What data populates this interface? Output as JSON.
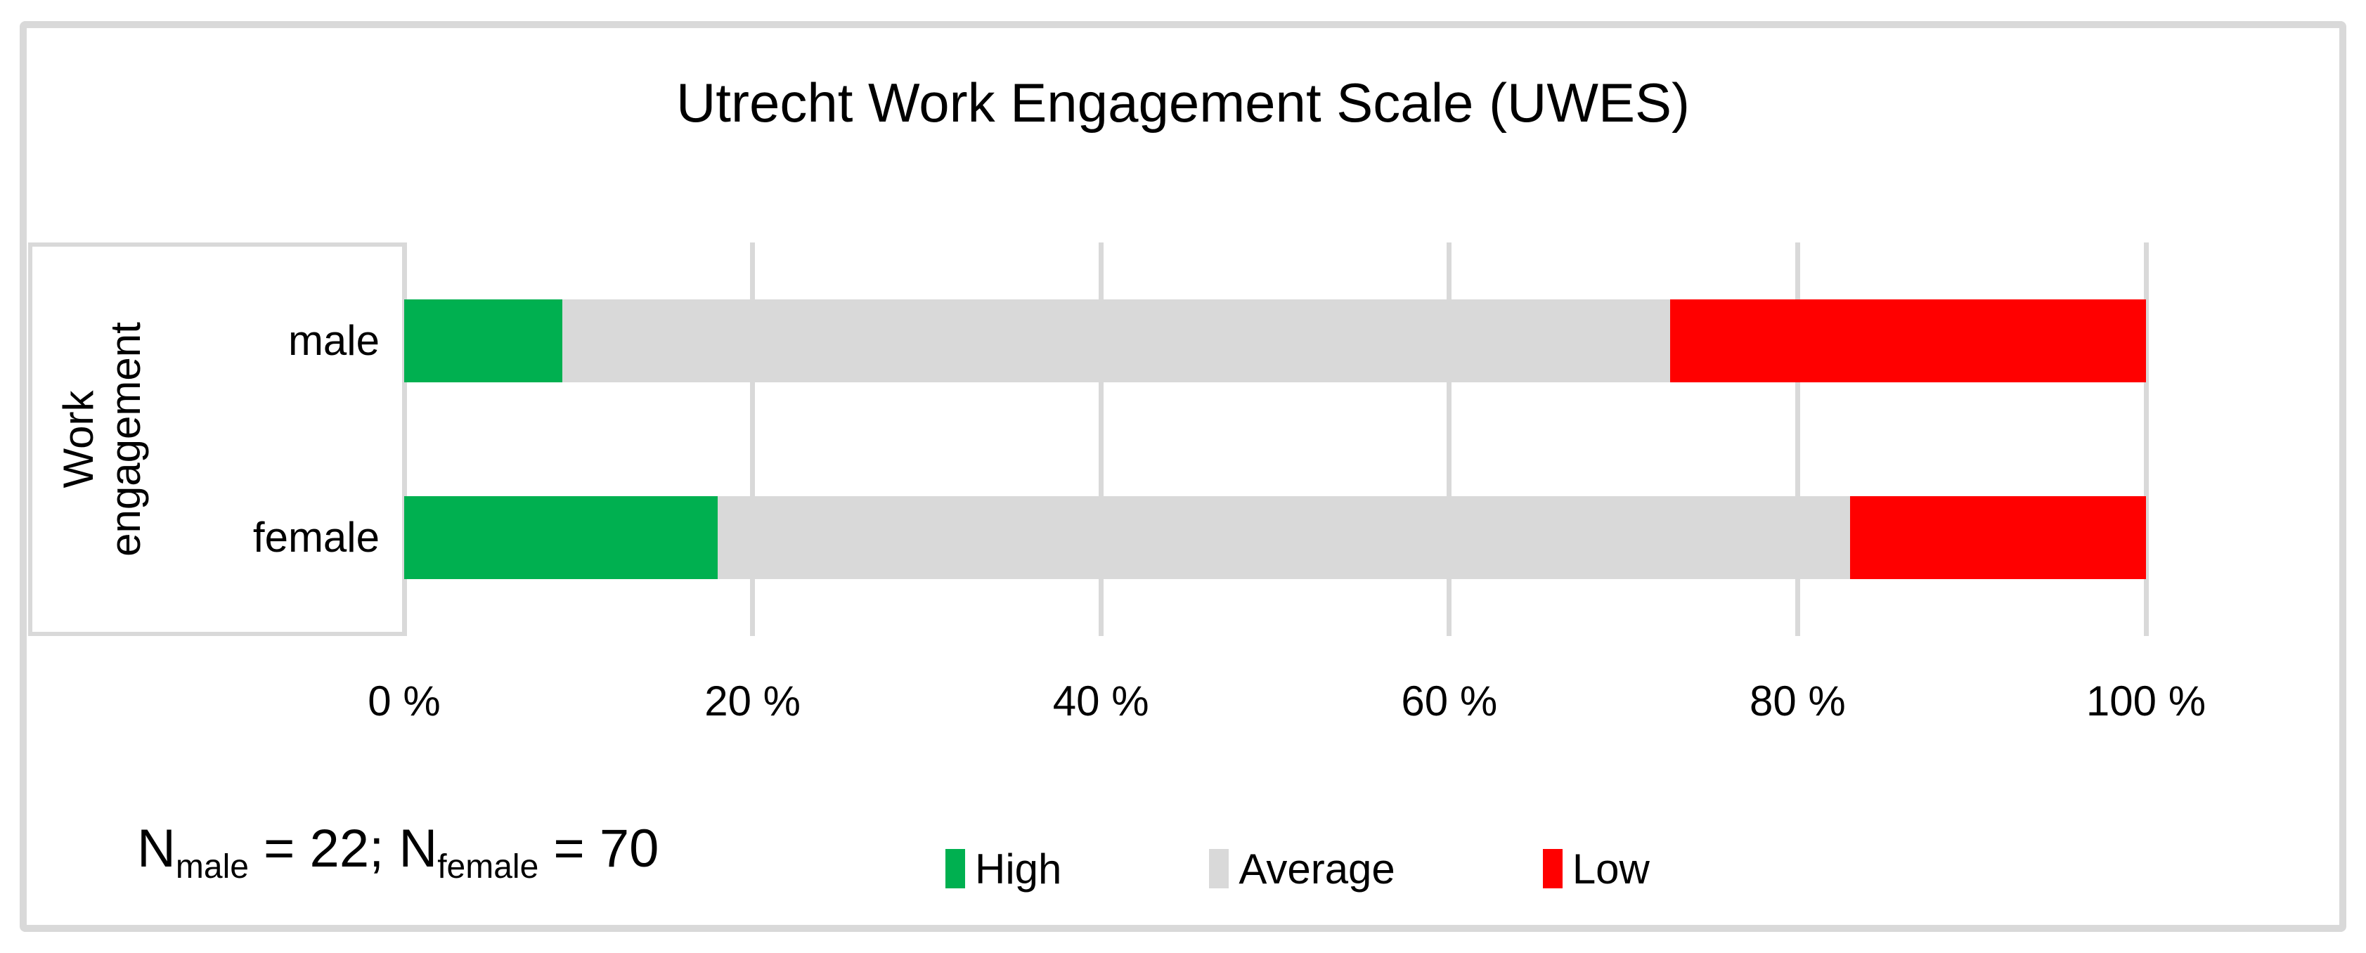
{
  "title": "Utrecht Work Engagement Scale (UWES)",
  "y_axis_label": {
    "line1": "Work",
    "line2": "engagement"
  },
  "annotation": {
    "symbol1": "N",
    "sub1": "male",
    "value1": " = 22; ",
    "symbol2": "N",
    "sub2": "female",
    "value2": " = 70"
  },
  "colors": {
    "high": "#00B050",
    "average": "#D9D9D9",
    "low": "#FF0000",
    "gridline": "#D9D9D9",
    "frame": "#D9D9D9",
    "text": "#000000"
  },
  "chart_data": {
    "type": "bar",
    "orientation": "horizontal",
    "stacked": true,
    "title": "Utrecht Work Engagement Scale (UWES)",
    "ylabel": "Work engagement",
    "categories": [
      "male",
      "female"
    ],
    "series": [
      {
        "name": "High",
        "color": "#00B050",
        "values": [
          9.1,
          18.0
        ]
      },
      {
        "name": "Average",
        "color": "#D9D9D9",
        "values": [
          63.6,
          65.0
        ]
      },
      {
        "name": "Low",
        "color": "#FF0000",
        "values": [
          27.3,
          17.0
        ]
      }
    ],
    "x_ticks": [
      "0 %",
      "20 %",
      "40 %",
      "60 %",
      "80 %",
      "100 %"
    ],
    "xlim": [
      0,
      100
    ],
    "unit": "percent",
    "gridlines": true,
    "legend_position": "bottom",
    "note": "N_male = 22; N_female = 70"
  }
}
